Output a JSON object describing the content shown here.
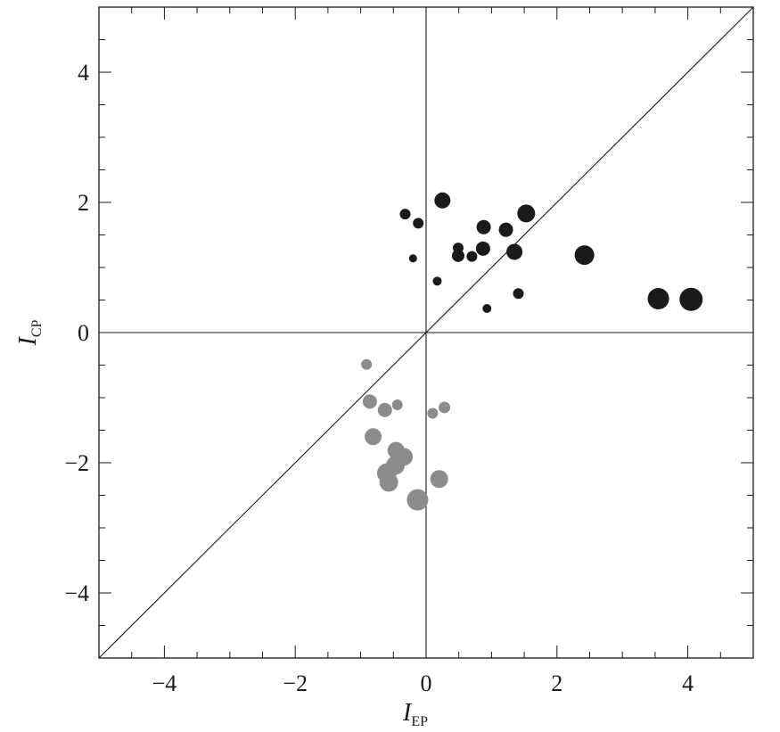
{
  "chart_data": {
    "type": "scatter",
    "xlabel": {
      "main": "I",
      "sub": "EP"
    },
    "ylabel": {
      "main": "I",
      "sub": "CP"
    },
    "xlim": [
      -5,
      5
    ],
    "ylim": [
      -5,
      5
    ],
    "xticks": [
      -4,
      -2,
      0,
      2,
      4
    ],
    "yticks": [
      -4,
      -2,
      0,
      2,
      4
    ],
    "tick_labels_x": [
      "−4",
      "−2",
      "0",
      "2",
      "4"
    ],
    "tick_labels_y": [
      "−4",
      "−2",
      "0",
      "2",
      "4"
    ],
    "reference_lines": [
      "x = 0",
      "y = 0",
      "y = x"
    ],
    "grid": false,
    "colors": {
      "upper_series": "#1a1a1a",
      "lower_series": "#8c8c8c",
      "axes": "#1a1a1a"
    },
    "series": [
      {
        "color": "#1a1a1a",
        "points": [
          {
            "x": 0.25,
            "y": 2.03,
            "size": 9
          },
          {
            "x": -0.32,
            "y": 1.82,
            "size": 6
          },
          {
            "x": -0.12,
            "y": 1.68,
            "size": 6
          },
          {
            "x": 0.88,
            "y": 1.62,
            "size": 8
          },
          {
            "x": 1.22,
            "y": 1.58,
            "size": 8
          },
          {
            "x": 1.53,
            "y": 1.83,
            "size": 10
          },
          {
            "x": 0.49,
            "y": 1.3,
            "size": 6
          },
          {
            "x": 0.87,
            "y": 1.29,
            "size": 8
          },
          {
            "x": 0.49,
            "y": 1.18,
            "size": 7
          },
          {
            "x": 0.7,
            "y": 1.17,
            "size": 6
          },
          {
            "x": 1.35,
            "y": 1.24,
            "size": 9
          },
          {
            "x": -0.2,
            "y": 1.14,
            "size": 4.5
          },
          {
            "x": 0.17,
            "y": 0.79,
            "size": 5
          },
          {
            "x": 2.42,
            "y": 1.19,
            "size": 11
          },
          {
            "x": 1.41,
            "y": 0.6,
            "size": 6
          },
          {
            "x": 0.93,
            "y": 0.37,
            "size": 5
          },
          {
            "x": 3.55,
            "y": 0.52,
            "size": 12
          },
          {
            "x": 4.05,
            "y": 0.51,
            "size": 13
          }
        ]
      },
      {
        "color": "#8c8c8c",
        "points": [
          {
            "x": -0.91,
            "y": -0.49,
            "size": 6
          },
          {
            "x": -0.86,
            "y": -1.06,
            "size": 8
          },
          {
            "x": -0.63,
            "y": -1.19,
            "size": 8
          },
          {
            "x": -0.44,
            "y": -1.11,
            "size": 6
          },
          {
            "x": 0.1,
            "y": -1.24,
            "size": 6
          },
          {
            "x": 0.28,
            "y": -1.15,
            "size": 6.5
          },
          {
            "x": -0.81,
            "y": -1.6,
            "size": 9.5
          },
          {
            "x": -0.46,
            "y": -1.81,
            "size": 9.5
          },
          {
            "x": -0.34,
            "y": -1.91,
            "size": 10
          },
          {
            "x": -0.47,
            "y": -2.04,
            "size": 10.5
          },
          {
            "x": -0.6,
            "y": -2.16,
            "size": 11
          },
          {
            "x": -0.57,
            "y": -2.3,
            "size": 10.5
          },
          {
            "x": 0.2,
            "y": -2.25,
            "size": 10
          },
          {
            "x": -0.13,
            "y": -2.57,
            "size": 12
          }
        ]
      }
    ]
  }
}
